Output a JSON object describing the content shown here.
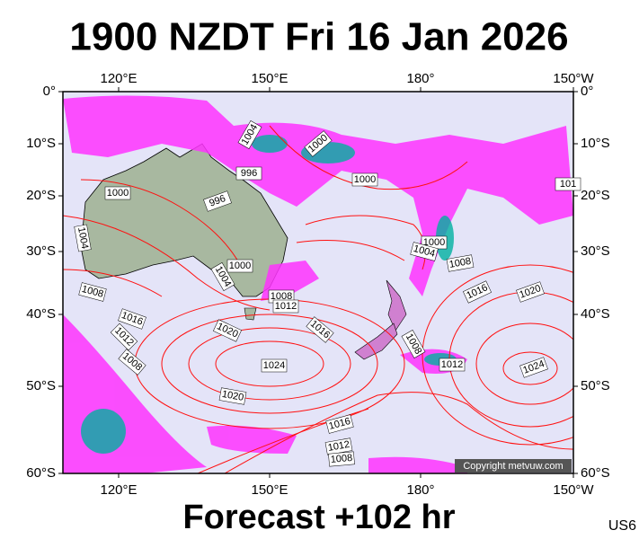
{
  "header": {
    "title": "1900 NZDT Fri 16 Jan 2026"
  },
  "map": {
    "lon_labels": [
      "120°E",
      "150°E",
      "180°",
      "150°W"
    ],
    "lat_labels": [
      "0°",
      "10°S",
      "20°S",
      "30°S",
      "40°S",
      "50°S",
      "60°S"
    ],
    "isobar_labels": [
      "1004",
      "1000",
      "996",
      "1000",
      "1000",
      "996",
      "1004",
      "1000",
      "1004",
      "1008",
      "1000",
      "1004",
      "1008",
      "1008",
      "1012",
      "1016",
      "1020",
      "1016",
      "1020",
      "1016",
      "1012",
      "1008",
      "1008",
      "1012",
      "1024",
      "1024",
      "1020",
      "1016",
      "1012",
      "1008",
      "101"
    ],
    "copyright": "Copyright metvuw.com"
  },
  "footer": {
    "forecast": "Forecast +102 hr",
    "code": "US6"
  }
}
